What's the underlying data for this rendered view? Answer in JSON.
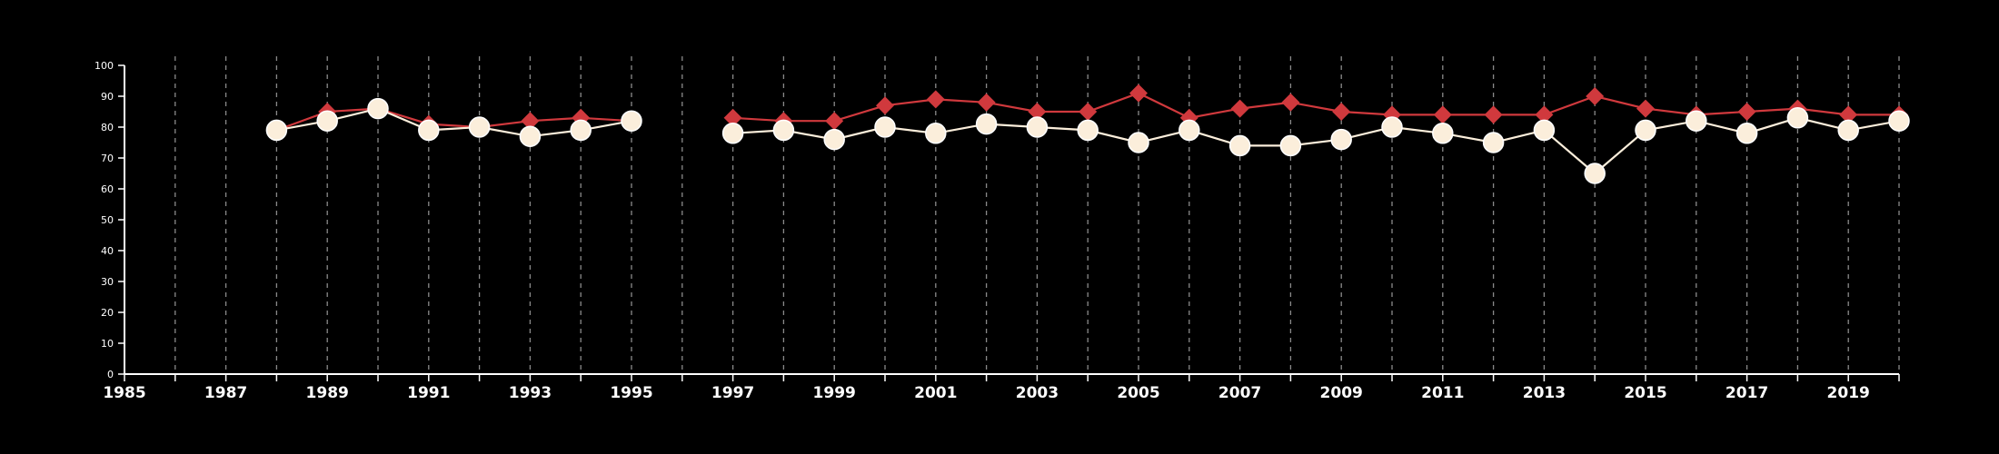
{
  "chart_data": {
    "type": "line",
    "x": [
      1988,
      1989,
      1990,
      1991,
      1992,
      1993,
      1994,
      1995,
      1996,
      1997,
      1998,
      1999,
      2000,
      2001,
      2002,
      2003,
      2004,
      2005,
      2006,
      2007,
      2008,
      2009,
      2010,
      2011,
      2012,
      2013,
      2014,
      2015,
      2016,
      2017,
      2018,
      2019,
      2020
    ],
    "series": [
      {
        "marker": "circle",
        "color": "#fbeedb",
        "values": [
          79,
          82,
          86,
          79,
          80,
          77,
          79,
          82,
          null,
          78,
          79,
          76,
          80,
          78,
          81,
          80,
          79,
          75,
          79,
          74,
          74,
          76,
          80,
          78,
          75,
          79,
          65,
          79,
          82,
          78,
          83,
          79,
          82
        ]
      },
      {
        "marker": "diamond",
        "color": "#d0393d",
        "values": [
          79,
          85,
          86,
          81,
          80,
          82,
          83,
          82,
          null,
          83,
          82,
          82,
          87,
          89,
          88,
          85,
          85,
          91,
          83,
          86,
          88,
          85,
          84,
          84,
          84,
          84,
          90,
          86,
          84,
          85,
          86,
          84,
          84
        ]
      }
    ],
    "xlim": [
      1985,
      2020
    ],
    "ylim": [
      0,
      100
    ],
    "x_tick_labels": [
      "1985",
      "1987",
      "1989",
      "1991",
      "1993",
      "1995",
      "1997",
      "1999",
      "2001",
      "2003",
      "2005",
      "2007",
      "2009",
      "2011",
      "2013",
      "2015",
      "2017",
      "2019"
    ],
    "y_tick_labels": [
      "0",
      "10",
      "20",
      "30",
      "40",
      "50",
      "60",
      "70",
      "80",
      "90",
      "100"
    ],
    "vertical_gridlines": "dashed, every year",
    "background": "#000000",
    "axis_color": "#ffffff",
    "title": "",
    "xlabel": "",
    "ylabel": ""
  }
}
